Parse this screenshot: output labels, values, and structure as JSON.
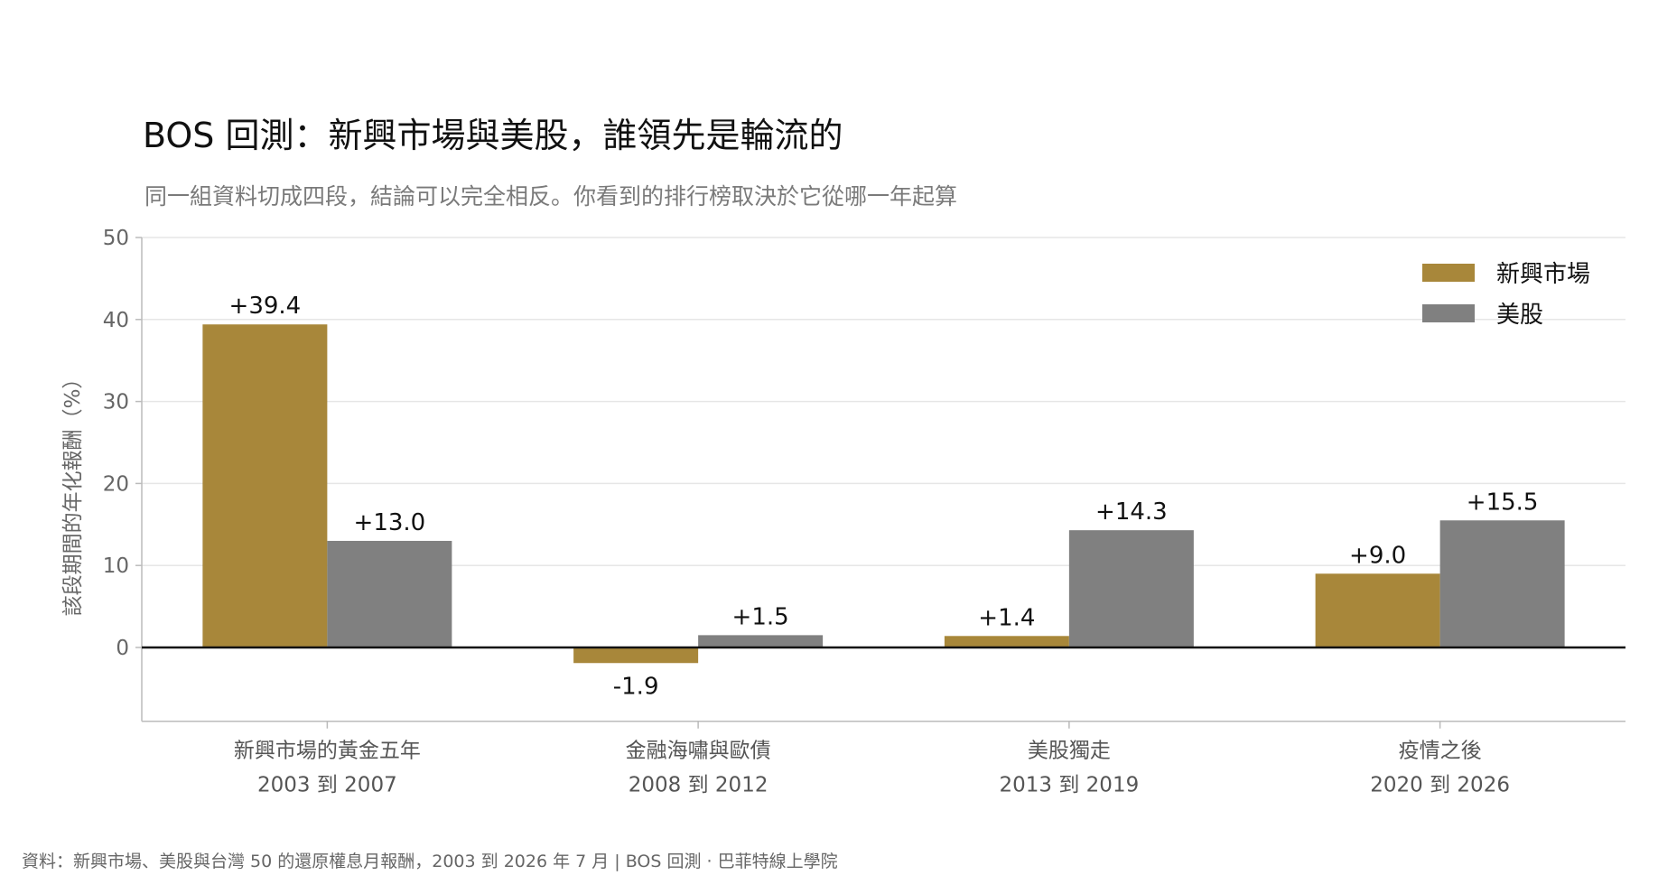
{
  "title": "BOS 回測：新興市場與美股，誰領先是輪流的",
  "subtitle": "同一組資料切成四段，結論可以完全相反。你看到的排行榜取決於它從哪一年起算",
  "footnote": "資料：新興市場、美股與台灣 50 的還原權息月報酬，2003 到 2026 年 7 月 | BOS 回測 ·  巴菲特線上學院",
  "colors": {
    "emerging": "#a8873a",
    "us": "#808080",
    "grid": "#e6e6e6",
    "axis": "#bbbbbb",
    "zero_line": "#111111"
  },
  "chart_data": {
    "type": "bar",
    "title": "BOS 回測：新興市場與美股，誰領先是輪流的",
    "subtitle": "同一組資料切成四段，結論可以完全相反。你看到的排行榜取決於它從哪一年起算",
    "ylabel": "該段期間的年化報酬（%）",
    "xlabel": "",
    "ylim": [
      -9,
      50
    ],
    "yticks": [
      0,
      10,
      20,
      30,
      40,
      50
    ],
    "grid": true,
    "legend": "top-right",
    "categories": [
      {
        "label": "新興市場的黃金五年",
        "sub": "2003 到 2007"
      },
      {
        "label": "金融海嘯與歐債",
        "sub": "2008 到 2012"
      },
      {
        "label": "美股獨走",
        "sub": "2013 到 2019"
      },
      {
        "label": "疫情之後",
        "sub": "2020 到 2026"
      }
    ],
    "series": [
      {
        "name": "新興市場",
        "color": "#a8873a",
        "values": [
          39.4,
          -1.9,
          1.4,
          9.0
        ],
        "labels": [
          "+39.4",
          "-1.9",
          "+1.4",
          "+9.0"
        ]
      },
      {
        "name": "美股",
        "color": "#808080",
        "values": [
          13.0,
          1.5,
          14.3,
          15.5
        ],
        "labels": [
          "+13.0",
          "+1.5",
          "+14.3",
          "+15.5"
        ]
      }
    ]
  }
}
